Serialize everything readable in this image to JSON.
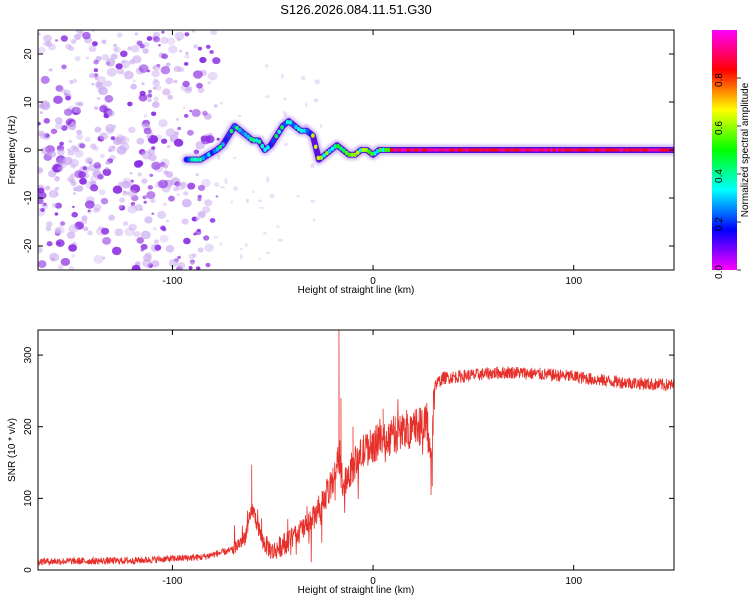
{
  "title": "S126.2026.084.11.51.G30",
  "chart_data": [
    {
      "id": "spectrogram",
      "type": "heatmap",
      "title": "S126.2026.084.11.51.G30",
      "xlabel": "Height of straight line (km)",
      "ylabel": "Frequency (Hz)",
      "xlim": [
        -167,
        150
      ],
      "ylim": [
        -25,
        25
      ],
      "xticks": [
        -100,
        0,
        100
      ],
      "yticks": [
        -20,
        -10,
        0,
        10,
        20
      ],
      "noise_region_x": [
        -167,
        -76
      ],
      "track": {
        "x": [
          -93,
          -86,
          -82,
          -78,
          -75,
          -72,
          -69,
          -66,
          -63,
          -60,
          -57,
          -54,
          -51,
          -48,
          -45,
          -42,
          -39,
          -36,
          -33,
          -30,
          -27,
          -24,
          -21,
          -18,
          -15,
          -12,
          -9,
          -6,
          -3,
          0,
          3,
          6,
          10,
          150
        ],
        "y": [
          -2,
          -2,
          -1,
          0,
          1,
          3,
          5,
          4,
          3,
          2,
          2,
          0,
          1,
          3,
          5,
          6,
          5,
          4,
          4,
          3,
          -2,
          -1,
          0,
          1,
          0,
          -1,
          -1,
          0,
          0,
          -1,
          0,
          0,
          0,
          0
        ]
      },
      "colorbar": {
        "label": "Normalized spectral amplitude",
        "ticks": [
          "0.0",
          "0.2",
          "0.4",
          "0.6",
          "0.8"
        ],
        "stops": [
          "#ff00ff",
          "#0000ff",
          "#00ffff",
          "#00ff00",
          "#ffff00",
          "#ff0000",
          "#ff00ff"
        ]
      }
    },
    {
      "id": "snr",
      "type": "line",
      "xlabel": "Height of straight line (km)",
      "ylabel": "SNR (10 * v/v)",
      "xlim": [
        -167,
        150
      ],
      "ylim": [
        0,
        335
      ],
      "xticks": [
        -100,
        0,
        100
      ],
      "yticks": [
        0,
        100,
        200,
        300
      ],
      "color": "#e8302b",
      "envelope": {
        "x": [
          -167,
          -120,
          -85,
          -70,
          -64,
          -60,
          -55,
          -50,
          -40,
          -30,
          -25,
          -20,
          -17,
          -15,
          -10,
          -5,
          0,
          10,
          20,
          27,
          29,
          30,
          31,
          35,
          50,
          60,
          70,
          80,
          90,
          100,
          110,
          120,
          130,
          140,
          150
        ],
        "y": [
          12,
          13,
          18,
          28,
          45,
          85,
          40,
          25,
          45,
          70,
          95,
          125,
          160,
          120,
          145,
          165,
          175,
          188,
          200,
          208,
          125,
          220,
          258,
          268,
          272,
          275,
          276,
          274,
          272,
          270,
          266,
          263,
          261,
          259,
          258
        ]
      },
      "spikes": [
        {
          "x": -60.5,
          "y": 147
        },
        {
          "x": -17,
          "y": 335
        },
        {
          "x": -16,
          "y": 240
        },
        {
          "x": -10,
          "y": 200
        },
        {
          "x": 5,
          "y": 225
        },
        {
          "x": 29.5,
          "y": 117
        }
      ]
    }
  ]
}
